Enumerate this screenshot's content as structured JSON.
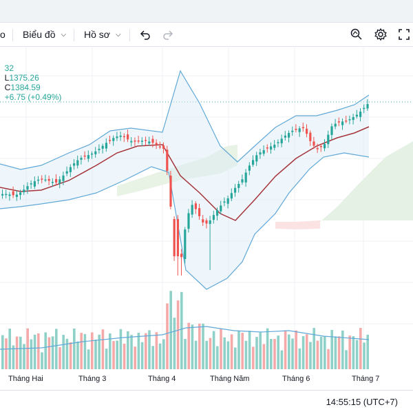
{
  "toolbar": {
    "partial_left": "o",
    "chart_type_label": "Biểu đồ",
    "profile_label": "Hồ sơ",
    "undo_icon": "undo-icon",
    "redo_icon": "redo-icon",
    "search_icon": "search-icon",
    "settings_icon": "gear-icon",
    "fullscreen_icon": "fullscreen-icon"
  },
  "legend": {
    "h_partial": "32",
    "l_label": "L",
    "l_value": "1375.26",
    "c_label": "C",
    "c_value": "1384.59",
    "change": "+6.75 (+0.49%)"
  },
  "footer": {
    "time": "14:55:15 (UTC+7)"
  },
  "colors": {
    "up": "#26a69a",
    "down": "#ef5350",
    "bb_line": "#5fa8d8",
    "ma_line": "#a5333a",
    "cloud": "#e6f1e6"
  },
  "chart_data": {
    "type": "candlestick",
    "x_ticks": [
      "Tháng Hai",
      "Tháng 3",
      "Tháng 4",
      "Tháng Năm",
      "Tháng 6",
      "Tháng 7"
    ],
    "last_close": 1384.59,
    "last_low": 1375.26,
    "last_change": "+6.75 (+0.49%)",
    "indicators": [
      "Bollinger Bands",
      "Moving Average",
      "Ichimoku Cloud",
      "Volume"
    ]
  }
}
